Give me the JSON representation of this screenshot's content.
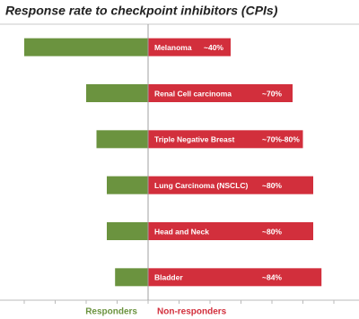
{
  "chart_data": {
    "type": "diverging_bar",
    "title": "Response rate to checkpoint inhibitors (CPIs)",
    "categories": [
      "Melanoma",
      "Renal Cell carcinoma",
      "Triple Negative Breast",
      "Lung Carcinoma (NSCLC)",
      "Head and Neck",
      "Bladder"
    ],
    "series": [
      {
        "name": "Responders",
        "color": "#6b933f",
        "values": [
          60,
          30,
          25,
          20,
          20,
          16
        ]
      },
      {
        "name": "Non-responders",
        "color": "#d22f3c",
        "values": [
          40,
          70,
          75,
          80,
          80,
          84
        ],
        "value_labels": [
          "~40%",
          "~70%",
          "~70%-80%",
          "~80%",
          "~80%",
          "~84%"
        ]
      }
    ],
    "xlim": [
      -70,
      100
    ],
    "xticks": [
      -60,
      -45,
      -30,
      -15,
      0,
      15,
      30,
      45,
      60,
      75,
      90
    ]
  }
}
